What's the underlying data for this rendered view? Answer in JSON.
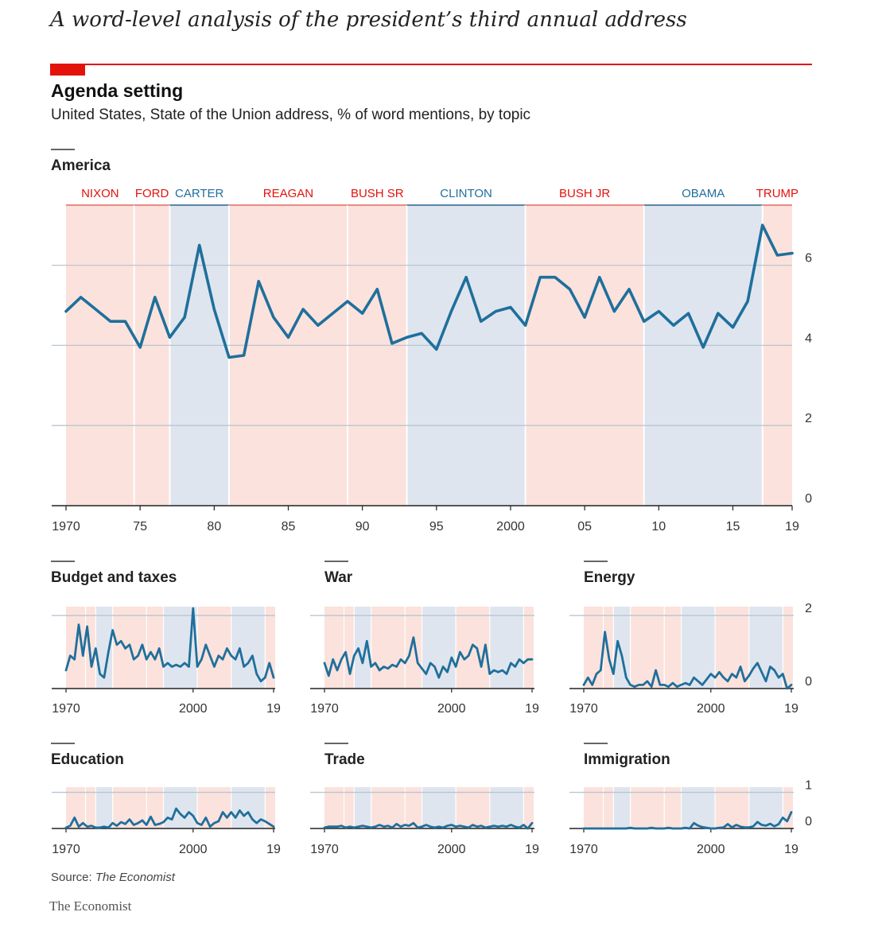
{
  "header": {
    "title": "A word-level analysis of the president’s third annual address"
  },
  "chart": {
    "title": "Agenda setting",
    "subtitle": "United States, State of the Union address, % of word mentions, by topic",
    "source_label": "Source:",
    "source_name": "The Economist",
    "brand": "The Economist"
  },
  "colors": {
    "line": "#1f6f9c",
    "republican_band": "#fbe2dc",
    "democrat_band": "#dfe5ee",
    "republican_label": "#e3120b",
    "democrat_label": "#1f6f9c",
    "accent": "#e3120b"
  },
  "presidents": [
    {
      "name": "NIXON",
      "party": "R",
      "start": 1970,
      "end": 1974.6
    },
    {
      "name": "FORD",
      "party": "R",
      "start": 1974.6,
      "end": 1977
    },
    {
      "name": "CARTER",
      "party": "D",
      "start": 1977,
      "end": 1981
    },
    {
      "name": "REAGAN",
      "party": "R",
      "start": 1981,
      "end": 1989
    },
    {
      "name": "BUSH SR",
      "party": "R",
      "start": 1989,
      "end": 1993
    },
    {
      "name": "CLINTON",
      "party": "D",
      "start": 1993,
      "end": 2001
    },
    {
      "name": "BUSH JR",
      "party": "R",
      "start": 2001,
      "end": 2009
    },
    {
      "name": "OBAMA",
      "party": "D",
      "start": 2009,
      "end": 2017
    },
    {
      "name": "TRUMP",
      "party": "R",
      "start": 2017,
      "end": 2019.6
    }
  ],
  "chart_data": [
    {
      "type": "line",
      "title": "America",
      "x_ticks": [
        "1970",
        "75",
        "80",
        "85",
        "90",
        "95",
        "2000",
        "05",
        "10",
        "15",
        "19"
      ],
      "y_ticks": [
        "0",
        "2",
        "4",
        "6"
      ],
      "ylim": [
        0,
        7.5
      ],
      "grid": true,
      "x": [
        1970,
        1971,
        1972,
        1973,
        1974,
        1975,
        1976,
        1977,
        1978,
        1979,
        1980,
        1981,
        1982,
        1983,
        1984,
        1985,
        1986,
        1987,
        1988,
        1989,
        1990,
        1991,
        1992,
        1993,
        1994,
        1995,
        1996,
        1997,
        1998,
        1999,
        2000,
        2001,
        2002,
        2003,
        2004,
        2005,
        2006,
        2007,
        2008,
        2009,
        2010,
        2011,
        2012,
        2013,
        2014,
        2015,
        2016,
        2017,
        2018,
        2019
      ],
      "values": [
        4.85,
        5.2,
        4.9,
        4.6,
        4.6,
        3.95,
        5.2,
        4.2,
        4.7,
        6.5,
        4.9,
        3.7,
        3.75,
        5.6,
        4.7,
        4.2,
        4.9,
        4.5,
        4.8,
        5.1,
        4.8,
        5.4,
        4.05,
        4.2,
        4.3,
        3.9,
        4.85,
        5.7,
        4.6,
        4.85,
        4.95,
        4.5,
        5.7,
        5.7,
        5.4,
        4.7,
        5.7,
        4.85,
        5.4,
        4.6,
        4.85,
        4.5,
        4.8,
        3.95,
        4.8,
        4.45,
        5.1,
        7.0,
        6.25,
        6.3
      ]
    },
    {
      "type": "line",
      "title": "Budget and taxes",
      "x_ticks": [
        "1970",
        "2000",
        "19"
      ],
      "y_ticks": [],
      "ylim": [
        0,
        2.2
      ],
      "grid": true,
      "x": [
        1970,
        1971,
        1972,
        1973,
        1974,
        1975,
        1976,
        1977,
        1978,
        1979,
        1980,
        1981,
        1982,
        1983,
        1984,
        1985,
        1986,
        1987,
        1988,
        1989,
        1990,
        1991,
        1992,
        1993,
        1994,
        1995,
        1996,
        1997,
        1998,
        1999,
        2000,
        2001,
        2002,
        2003,
        2004,
        2005,
        2006,
        2007,
        2008,
        2009,
        2010,
        2011,
        2012,
        2013,
        2014,
        2015,
        2016,
        2017,
        2018,
        2019
      ],
      "values": [
        0.5,
        0.9,
        0.8,
        1.75,
        0.9,
        1.7,
        0.6,
        1.1,
        0.4,
        0.3,
        1.0,
        1.6,
        1.2,
        1.3,
        1.1,
        1.2,
        0.8,
        0.9,
        1.2,
        0.8,
        1.0,
        0.8,
        1.1,
        0.6,
        0.7,
        0.6,
        0.65,
        0.6,
        0.7,
        0.6,
        2.2,
        0.6,
        0.8,
        1.2,
        0.9,
        0.6,
        0.9,
        0.8,
        1.1,
        0.9,
        0.8,
        1.1,
        0.6,
        0.7,
        0.9,
        0.4,
        0.2,
        0.3,
        0.7,
        0.3
      ]
    },
    {
      "type": "line",
      "title": "War",
      "x_ticks": [
        "1970",
        "2000",
        "19"
      ],
      "y_ticks": [],
      "ylim": [
        0,
        2.2
      ],
      "grid": true,
      "x": [
        1970,
        1971,
        1972,
        1973,
        1974,
        1975,
        1976,
        1977,
        1978,
        1979,
        1980,
        1981,
        1982,
        1983,
        1984,
        1985,
        1986,
        1987,
        1988,
        1989,
        1990,
        1991,
        1992,
        1993,
        1994,
        1995,
        1996,
        1997,
        1998,
        1999,
        2000,
        2001,
        2002,
        2003,
        2004,
        2005,
        2006,
        2007,
        2008,
        2009,
        2010,
        2011,
        2012,
        2013,
        2014,
        2015,
        2016,
        2017,
        2018,
        2019
      ],
      "values": [
        0.7,
        0.35,
        0.8,
        0.5,
        0.8,
        1.0,
        0.4,
        0.9,
        1.1,
        0.7,
        1.3,
        0.6,
        0.7,
        0.5,
        0.6,
        0.55,
        0.65,
        0.6,
        0.8,
        0.7,
        0.9,
        1.4,
        0.7,
        0.55,
        0.4,
        0.7,
        0.6,
        0.3,
        0.6,
        0.45,
        0.85,
        0.6,
        1.0,
        0.8,
        0.9,
        1.2,
        1.1,
        0.6,
        1.2,
        0.4,
        0.5,
        0.45,
        0.5,
        0.4,
        0.7,
        0.6,
        0.8,
        0.7,
        0.8,
        0.8
      ]
    },
    {
      "type": "line",
      "title": "Energy",
      "x_ticks": [
        "1970",
        "2000",
        "19"
      ],
      "y_ticks": [
        "0",
        "2"
      ],
      "ylim": [
        0,
        2.2
      ],
      "grid": true,
      "x": [
        1970,
        1971,
        1972,
        1973,
        1974,
        1975,
        1976,
        1977,
        1978,
        1979,
        1980,
        1981,
        1982,
        1983,
        1984,
        1985,
        1986,
        1987,
        1988,
        1989,
        1990,
        1991,
        1992,
        1993,
        1994,
        1995,
        1996,
        1997,
        1998,
        1999,
        2000,
        2001,
        2002,
        2003,
        2004,
        2005,
        2006,
        2007,
        2008,
        2009,
        2010,
        2011,
        2012,
        2013,
        2014,
        2015,
        2016,
        2017,
        2018,
        2019
      ],
      "values": [
        0.1,
        0.3,
        0.1,
        0.4,
        0.5,
        1.55,
        0.8,
        0.4,
        1.3,
        0.9,
        0.3,
        0.1,
        0.05,
        0.1,
        0.1,
        0.2,
        0.05,
        0.5,
        0.1,
        0.1,
        0.05,
        0.15,
        0.05,
        0.1,
        0.15,
        0.1,
        0.3,
        0.2,
        0.1,
        0.25,
        0.4,
        0.3,
        0.45,
        0.3,
        0.2,
        0.4,
        0.3,
        0.6,
        0.2,
        0.35,
        0.55,
        0.7,
        0.45,
        0.2,
        0.6,
        0.5,
        0.3,
        0.4,
        0.0,
        0.1
      ]
    },
    {
      "type": "line",
      "title": "Education",
      "x_ticks": [
        "1970",
        "2000",
        "19"
      ],
      "y_ticks": [],
      "ylim": [
        0,
        2.2
      ],
      "grid": true,
      "x": [
        1970,
        1971,
        1972,
        1973,
        1974,
        1975,
        1976,
        1977,
        1978,
        1979,
        1980,
        1981,
        1982,
        1983,
        1984,
        1985,
        1986,
        1987,
        1988,
        1989,
        1990,
        1991,
        1992,
        1993,
        1994,
        1995,
        1996,
        1997,
        1998,
        1999,
        2000,
        2001,
        2002,
        2003,
        2004,
        2005,
        2006,
        2007,
        2008,
        2009,
        2010,
        2011,
        2012,
        2013,
        2014,
        2015,
        2016,
        2017,
        2018,
        2019
      ],
      "values": [
        0.05,
        0.15,
        0.6,
        0.1,
        0.3,
        0.1,
        0.15,
        0.05,
        0.05,
        0.1,
        0.05,
        0.3,
        0.15,
        0.35,
        0.25,
        0.5,
        0.2,
        0.3,
        0.45,
        0.2,
        0.65,
        0.2,
        0.25,
        0.35,
        0.6,
        0.5,
        1.1,
        0.8,
        0.6,
        0.9,
        0.7,
        0.3,
        0.2,
        0.6,
        0.1,
        0.3,
        0.4,
        0.9,
        0.6,
        0.9,
        0.6,
        1.0,
        0.7,
        0.9,
        0.5,
        0.3,
        0.5,
        0.4,
        0.25,
        0.1
      ]
    },
    {
      "type": "line",
      "title": "Trade",
      "x_ticks": [
        "1970",
        "2000",
        "19"
      ],
      "y_ticks": [],
      "ylim": [
        0,
        2.2
      ],
      "grid": true,
      "x": [
        1970,
        1971,
        1972,
        1973,
        1974,
        1975,
        1976,
        1977,
        1978,
        1979,
        1980,
        1981,
        1982,
        1983,
        1984,
        1985,
        1986,
        1987,
        1988,
        1989,
        1990,
        1991,
        1992,
        1993,
        1994,
        1995,
        1996,
        1997,
        1998,
        1999,
        2000,
        2001,
        2002,
        2003,
        2004,
        2005,
        2006,
        2007,
        2008,
        2009,
        2010,
        2011,
        2012,
        2013,
        2014,
        2015,
        2016,
        2017,
        2018,
        2019
      ],
      "values": [
        0.05,
        0.1,
        0.1,
        0.1,
        0.15,
        0.05,
        0.1,
        0.05,
        0.1,
        0.15,
        0.1,
        0.05,
        0.1,
        0.2,
        0.1,
        0.15,
        0.05,
        0.25,
        0.1,
        0.2,
        0.15,
        0.3,
        0.05,
        0.1,
        0.2,
        0.1,
        0.05,
        0.1,
        0.05,
        0.15,
        0.2,
        0.1,
        0.15,
        0.1,
        0.05,
        0.2,
        0.1,
        0.15,
        0.05,
        0.1,
        0.15,
        0.1,
        0.15,
        0.1,
        0.2,
        0.1,
        0.05,
        0.2,
        0.0,
        0.3
      ]
    },
    {
      "type": "line",
      "title": "Immigration",
      "x_ticks": [
        "1970",
        "2000",
        "19"
      ],
      "y_ticks": [
        "0",
        "1"
      ],
      "ylim": [
        0,
        1.1
      ],
      "grid": true,
      "x": [
        1970,
        1971,
        1972,
        1973,
        1974,
        1975,
        1976,
        1977,
        1978,
        1979,
        1980,
        1981,
        1982,
        1983,
        1984,
        1985,
        1986,
        1987,
        1988,
        1989,
        1990,
        1991,
        1992,
        1993,
        1994,
        1995,
        1996,
        1997,
        1998,
        1999,
        2000,
        2001,
        2002,
        2003,
        2004,
        2005,
        2006,
        2007,
        2008,
        2009,
        2010,
        2011,
        2012,
        2013,
        2014,
        2015,
        2016,
        2017,
        2018,
        2019
      ],
      "values": [
        0.0,
        0.0,
        0.0,
        0.0,
        0.0,
        0.0,
        0.0,
        0.0,
        0.0,
        0.0,
        0.0,
        0.02,
        0.0,
        0.0,
        0.0,
        0.0,
        0.02,
        0.0,
        0.0,
        0.0,
        0.02,
        0.0,
        0.0,
        0.0,
        0.02,
        0.0,
        0.15,
        0.08,
        0.04,
        0.02,
        0.0,
        0.0,
        0.02,
        0.03,
        0.12,
        0.03,
        0.1,
        0.05,
        0.03,
        0.03,
        0.06,
        0.18,
        0.1,
        0.08,
        0.13,
        0.06,
        0.12,
        0.3,
        0.2,
        0.45
      ]
    }
  ]
}
